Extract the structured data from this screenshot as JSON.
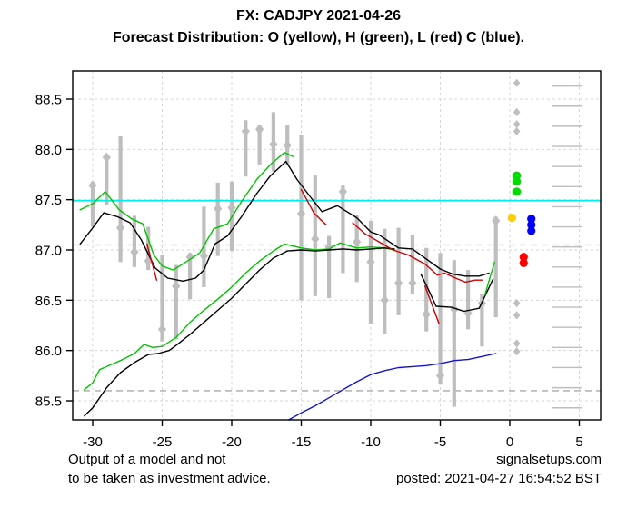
{
  "header": {
    "title": "FX: CADJPY 2021-04-26",
    "subtitle": "Forecast Distribution: O (yellow), H (green), L (red) C (blue)."
  },
  "footer": {
    "disclaimer_line1": "Output of a model and not",
    "disclaimer_line2": "to be taken as investment advice.",
    "site": "signalsetups.com",
    "posted": "posted: 2021-04-27 16:54:52 BST"
  },
  "colors": {
    "bar_gray": "#BEBEBE",
    "grid_light": "#D6D6D6",
    "grid_dark_dashed": "#A9A9A9",
    "cyan_line": "#00EEEE",
    "green_line": "#00C400",
    "black_line": "#000000",
    "red_line": "#CD0000",
    "blue_line": "#1414CC",
    "dot_yellow": "#FFCC00",
    "dot_green": "#00DD00",
    "dot_blue": "#0000FF",
    "dot_red": "#FF0000",
    "axis_text": "#000000"
  },
  "chart_data": {
    "type": "line",
    "title": "FX: CADJPY 2021-04-26",
    "subtitle": "Forecast Distribution: O (yellow), H (green), L (red) C (blue).",
    "xlabel": "",
    "ylabel": "",
    "xlim": [
      -31.5,
      6.4
    ],
    "ylim": [
      85.31,
      88.78
    ],
    "x_ticks": [
      -30,
      -25,
      -20,
      -15,
      -10,
      -5,
      0,
      5
    ],
    "y_ticks": [
      85.5,
      86.0,
      86.5,
      87.0,
      87.5,
      88.0,
      88.5
    ],
    "grid": true,
    "reference_lines": {
      "cyan_level": 87.49,
      "dark_dashed_levels": [
        87.05,
        85.6
      ]
    },
    "bars_note": "gray high-low ranges of last 30 periods with gray diamond marker",
    "bars": [
      {
        "x": -30,
        "low": 87.23,
        "high": 87.68,
        "dot": 87.64
      },
      {
        "x": -29,
        "low": 87.45,
        "high": 87.94,
        "dot": 87.92
      },
      {
        "x": -28,
        "low": 86.88,
        "high": 88.13,
        "dot": 87.22
      },
      {
        "x": -27,
        "low": 86.83,
        "high": 87.34,
        "dot": 86.98
      },
      {
        "x": -26,
        "low": 86.8,
        "high": 87.23,
        "dot": 86.89
      },
      {
        "x": -25,
        "low": 86.09,
        "high": 86.95,
        "dot": 86.21
      },
      {
        "x": -24,
        "low": 86.11,
        "high": 86.85,
        "dot": 86.64
      },
      {
        "x": -23,
        "low": 86.51,
        "high": 86.97,
        "dot": 86.93
      },
      {
        "x": -22,
        "low": 86.63,
        "high": 87.43,
        "dot": 86.94
      },
      {
        "x": -21,
        "low": 86.94,
        "high": 87.67,
        "dot": 87.41
      },
      {
        "x": -20,
        "low": 86.99,
        "high": 87.68,
        "dot": 87.42
      },
      {
        "x": -19,
        "low": 87.73,
        "high": 88.29,
        "dot": 88.18
      },
      {
        "x": -18,
        "low": 87.85,
        "high": 88.24,
        "dot": 88.2
      },
      {
        "x": -17,
        "low": 87.78,
        "high": 88.37,
        "dot": 88.05
      },
      {
        "x": -16,
        "low": 87.85,
        "high": 88.24,
        "dot": 88.04
      },
      {
        "x": -15,
        "low": 86.5,
        "high": 88.14,
        "dot": 87.36
      },
      {
        "x": -14,
        "low": 86.54,
        "high": 87.74,
        "dot": 87.11
      },
      {
        "x": -13,
        "low": 86.52,
        "high": 87.14,
        "dot": 87.03
      },
      {
        "x": -12,
        "low": 86.77,
        "high": 87.64,
        "dot": 87.58
      },
      {
        "x": -11,
        "low": 86.68,
        "high": 87.35,
        "dot": 87.08
      },
      {
        "x": -10,
        "low": 86.26,
        "high": 87.29,
        "dot": 86.88
      },
      {
        "x": -9,
        "low": 86.16,
        "high": 87.21,
        "dot": 86.5
      },
      {
        "x": -8,
        "low": 86.35,
        "high": 87.22,
        "dot": 86.67
      },
      {
        "x": -7,
        "low": 86.56,
        "high": 87.15,
        "dot": 86.67
      },
      {
        "x": -6,
        "low": 86.19,
        "high": 87.02,
        "dot": 86.36
      },
      {
        "x": -5,
        "low": 85.66,
        "high": 86.97,
        "dot": 85.75
      },
      {
        "x": -4,
        "low": 85.44,
        "high": 86.9,
        "dot": 86.41
      },
      {
        "x": -3,
        "low": 86.21,
        "high": 86.8,
        "dot": 86.37
      },
      {
        "x": -2,
        "low": 86.04,
        "high": 86.56,
        "dot": 86.47
      },
      {
        "x": -1,
        "low": 86.33,
        "high": 87.33,
        "dot": 87.29
      }
    ],
    "series": [
      {
        "name": "high-band-green",
        "color_key": "green_line",
        "points": [
          [
            -30.9,
            87.4
          ],
          [
            -30,
            87.46
          ],
          [
            -29.1,
            87.58
          ],
          [
            -28.1,
            87.4
          ],
          [
            -27.2,
            87.31
          ],
          [
            -26.4,
            87.26
          ],
          [
            -25.6,
            86.95
          ],
          [
            -25,
            86.84
          ],
          [
            -24.2,
            86.8
          ],
          [
            -23.3,
            86.88
          ],
          [
            -22.3,
            86.97
          ],
          [
            -21.3,
            87.21
          ],
          [
            -20.3,
            87.26
          ],
          [
            -19.3,
            87.48
          ],
          [
            -18.2,
            87.7
          ],
          [
            -17.2,
            87.85
          ],
          [
            -16.2,
            87.97
          ],
          [
            -15.6,
            87.93
          ]
        ]
      },
      {
        "name": "high-band-black",
        "color_key": "black_line",
        "points": [
          [
            -30.9,
            87.06
          ],
          [
            -30,
            87.22
          ],
          [
            -29.2,
            87.37
          ],
          [
            -28.2,
            87.33
          ],
          [
            -27.3,
            87.27
          ],
          [
            -26.5,
            87.1
          ],
          [
            -25.5,
            86.82
          ],
          [
            -24.6,
            86.72
          ],
          [
            -23.5,
            86.69
          ],
          [
            -22.6,
            86.72
          ],
          [
            -22,
            86.8
          ],
          [
            -21.2,
            87.06
          ],
          [
            -20.3,
            87.14
          ],
          [
            -19.3,
            87.33
          ],
          [
            -18.2,
            87.56
          ],
          [
            -17.2,
            87.74
          ],
          [
            -16.1,
            87.88
          ],
          [
            -15.3,
            87.7
          ],
          [
            -14.3,
            87.52
          ],
          [
            -13.5,
            87.38
          ],
          [
            -12.4,
            87.44
          ],
          [
            -11,
            87.32
          ],
          [
            -10,
            87.18
          ],
          [
            -9.4,
            87.15
          ],
          [
            -8,
            87.02
          ],
          [
            -7,
            87.01
          ],
          [
            -6.1,
            86.92
          ],
          [
            -5,
            86.81
          ],
          [
            -4.1,
            86.76
          ],
          [
            -3.2,
            86.74
          ],
          [
            -2.2,
            86.74
          ],
          [
            -1.5,
            86.77
          ]
        ]
      },
      {
        "name": "low-band-green",
        "color_key": "green_line",
        "points": [
          [
            -30.6,
            85.61
          ],
          [
            -30,
            85.68
          ],
          [
            -29.5,
            85.81
          ],
          [
            -29,
            85.84
          ],
          [
            -28,
            85.9
          ],
          [
            -27,
            85.97
          ],
          [
            -26.3,
            86.06
          ],
          [
            -25.7,
            86.03
          ],
          [
            -25,
            86.04
          ],
          [
            -24,
            86.13
          ],
          [
            -23,
            86.28
          ],
          [
            -22,
            86.4
          ],
          [
            -21,
            86.51
          ],
          [
            -20,
            86.63
          ],
          [
            -19,
            86.77
          ],
          [
            -18,
            86.89
          ],
          [
            -17,
            86.99
          ],
          [
            -16.2,
            87.06
          ],
          [
            -15,
            87.02
          ],
          [
            -14,
            87.0
          ],
          [
            -13,
            87.01
          ],
          [
            -12.2,
            87.07
          ],
          [
            -11,
            87.02
          ],
          [
            -10,
            87.03
          ],
          [
            -9,
            87.02
          ],
          [
            -8.3,
            87.0
          ]
        ]
      },
      {
        "name": "low-band-black",
        "color_key": "black_line",
        "points": [
          [
            -30.6,
            85.35
          ],
          [
            -30,
            85.43
          ],
          [
            -29,
            85.63
          ],
          [
            -28,
            85.78
          ],
          [
            -27,
            85.88
          ],
          [
            -26,
            85.96
          ],
          [
            -25.3,
            85.97
          ],
          [
            -24.5,
            86.0
          ],
          [
            -24,
            86.05
          ],
          [
            -23,
            86.16
          ],
          [
            -22,
            86.28
          ],
          [
            -21,
            86.4
          ],
          [
            -20,
            86.52
          ],
          [
            -19,
            86.66
          ],
          [
            -18,
            86.8
          ],
          [
            -17,
            86.92
          ],
          [
            -16,
            86.99
          ],
          [
            -15,
            87.0
          ],
          [
            -14,
            86.99
          ],
          [
            -13,
            87.0
          ],
          [
            -12,
            87.01
          ],
          [
            -11,
            87.0
          ],
          [
            -10,
            87.01
          ],
          [
            -9,
            87.02
          ],
          [
            -8.3,
            87.01
          ]
        ]
      },
      {
        "name": "red-segment-1",
        "color_key": "red_line",
        "points": [
          [
            -26.1,
            87.06
          ],
          [
            -25.4,
            86.7
          ]
        ]
      },
      {
        "name": "red-segment-2",
        "color_key": "red_line",
        "points": [
          [
            -15.0,
            87.6
          ],
          [
            -14.6,
            87.5
          ],
          [
            -14.1,
            87.37
          ],
          [
            -13.6,
            87.3
          ],
          [
            -13.2,
            87.25
          ]
        ]
      },
      {
        "name": "red-segment-3",
        "color_key": "red_line",
        "points": [
          [
            -11.3,
            87.27
          ],
          [
            -10.4,
            87.16
          ],
          [
            -9.4,
            87.08
          ],
          [
            -8.4,
            87.0
          ],
          [
            -7.3,
            86.95
          ],
          [
            -6.1,
            86.86
          ],
          [
            -5.2,
            86.75
          ],
          [
            -4.7,
            86.77
          ],
          [
            -3.9,
            86.72
          ],
          [
            -3.2,
            86.68
          ],
          [
            -2.5,
            86.7
          ],
          [
            -2.0,
            86.7
          ]
        ]
      },
      {
        "name": "red-segment-4",
        "color_key": "red_line",
        "points": [
          [
            -6.1,
            86.64
          ],
          [
            -5.1,
            86.27
          ]
        ]
      },
      {
        "name": "low-black-right",
        "color_key": "black_line",
        "points": [
          [
            -6.4,
            86.76
          ],
          [
            -5.9,
            86.62
          ],
          [
            -5.3,
            86.44
          ],
          [
            -4.2,
            86.43
          ],
          [
            -3.3,
            86.39
          ],
          [
            -2.2,
            86.42
          ],
          [
            -1.2,
            86.71
          ]
        ]
      },
      {
        "name": "green-end-segment",
        "color_key": "green_line",
        "points": [
          [
            -1.8,
            86.55
          ],
          [
            -1.1,
            86.88
          ]
        ]
      },
      {
        "name": "blue-line",
        "color_key": "blue_line",
        "points": [
          [
            -15.9,
            85.31
          ],
          [
            -15,
            85.38
          ],
          [
            -14,
            85.45
          ],
          [
            -13,
            85.53
          ],
          [
            -12,
            85.61
          ],
          [
            -11,
            85.69
          ],
          [
            -10,
            85.76
          ],
          [
            -9,
            85.8
          ],
          [
            -8,
            85.83
          ],
          [
            -7,
            85.84
          ],
          [
            -6,
            85.85
          ],
          [
            -5,
            85.87
          ],
          [
            -4,
            85.9
          ],
          [
            -3,
            85.91
          ],
          [
            -2,
            85.94
          ],
          [
            -1,
            85.97
          ]
        ]
      }
    ],
    "forecast_dots": [
      {
        "name": "gray-outlier-diamonds",
        "shape": "diamond",
        "color_key": "bar_gray",
        "x": 0.5,
        "values": [
          88.66,
          88.37,
          88.25,
          88.18,
          86.47,
          86.35,
          86.07,
          85.99
        ]
      },
      {
        "name": "high-forecast-green",
        "shape": "circle",
        "color_key": "dot_green",
        "x": 0.5,
        "values": [
          87.74,
          87.68,
          87.58
        ]
      },
      {
        "name": "open-forecast-yellow",
        "shape": "circle",
        "color_key": "dot_yellow",
        "x": 0.15,
        "values": [
          87.32
        ]
      },
      {
        "name": "close-forecast-blue",
        "shape": "circle",
        "color_key": "dot_blue",
        "x": 1.55,
        "values": [
          87.31,
          87.25,
          87.19
        ]
      },
      {
        "name": "low-forecast-red",
        "shape": "circle",
        "color_key": "dot_red",
        "x": 1.0,
        "values": [
          86.93,
          86.87
        ]
      }
    ],
    "right_distribution_ticks": {
      "values": [
        88.63,
        88.43,
        88.23,
        88.03,
        87.83,
        87.63,
        87.43,
        87.23,
        87.03,
        86.83,
        86.63,
        86.43,
        86.23,
        86.03,
        85.83,
        85.63,
        85.43
      ]
    }
  }
}
